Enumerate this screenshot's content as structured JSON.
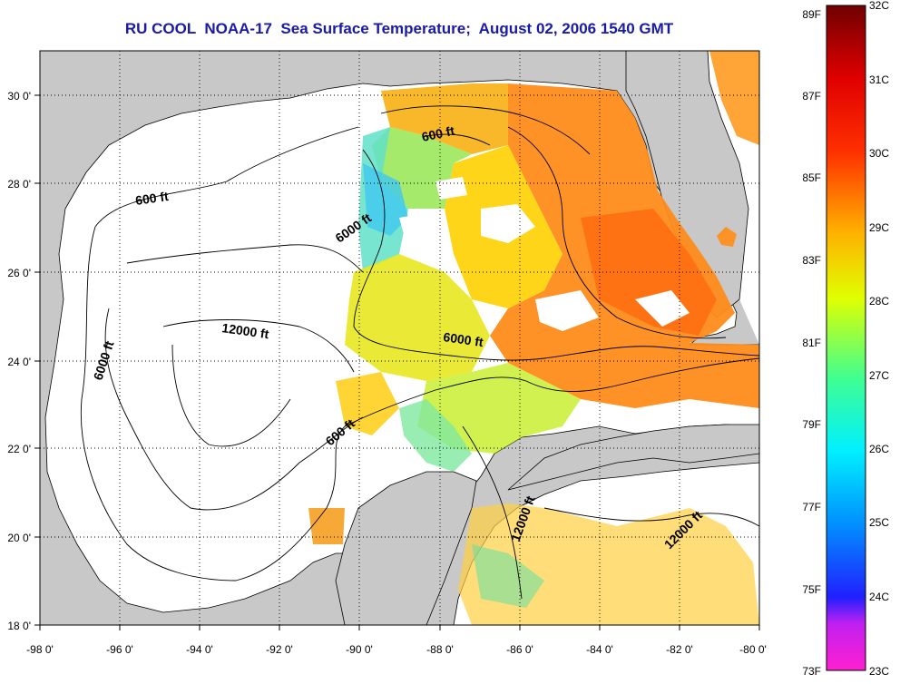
{
  "title": "RU COOL  NOAA-17  Sea Surface Temperature;  August 02, 2006 1540 GMT",
  "map": {
    "x_ticks": [
      "-98 0'",
      "-96 0'",
      "-94 0'",
      "-92 0'",
      "-90 0'",
      "-88 0'",
      "-86 0'",
      "-84 0'",
      "-82 0'",
      "-80 0'"
    ],
    "y_ticks": [
      "30 0'",
      "28 0'",
      "26 0'",
      "24 0'",
      "22 0'",
      "20 0'",
      "18 0'"
    ],
    "lon_range": [
      -98,
      -80
    ],
    "lat_range": [
      18,
      31
    ],
    "grid": "dotted",
    "contour_labels": [
      {
        "text": "600 ft"
      },
      {
        "text": "600 ft"
      },
      {
        "text": "6000 ft"
      },
      {
        "text": "12000 ft"
      },
      {
        "text": "6000 ft"
      },
      {
        "text": "6000 ft"
      },
      {
        "text": "600 ft"
      },
      {
        "text": "12000 ft"
      },
      {
        "text": "12000 ft"
      }
    ],
    "colors": {
      "land": "#c8c8c8",
      "no_data": "#ffffff",
      "contour": "#000000"
    }
  },
  "colorbar": {
    "fahrenheit_labels": [
      "89F",
      "87F",
      "85F",
      "83F",
      "81F",
      "79F",
      "77F",
      "75F",
      "73F"
    ],
    "celsius_labels": [
      "32C",
      "31C",
      "30C",
      "29C",
      "28C",
      "27C",
      "26C",
      "25C",
      "24C",
      "23C"
    ],
    "range_c": [
      23,
      32
    ],
    "stops": [
      "#ff20d0",
      "#9020ff",
      "#0010ff",
      "#0090ff",
      "#00f0ff",
      "#40ff90",
      "#e0ff00",
      "#ffb000",
      "#ff3000",
      "#e00000",
      "#700000"
    ]
  }
}
